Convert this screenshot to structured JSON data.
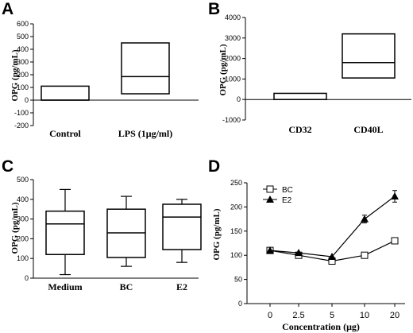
{
  "chart_data": [
    {
      "panel": "A",
      "type": "box",
      "ylabel": "OPG (pg/mL)",
      "ylim": [
        -200,
        600
      ],
      "yticks": [
        -200,
        -100,
        0,
        100,
        200,
        300,
        400,
        500,
        600
      ],
      "categories": [
        "Control",
        "LPS (1μg/ml)"
      ],
      "boxes": [
        {
          "label": "Control",
          "q1": 0,
          "median": 0,
          "q3": 110
        },
        {
          "label": "LPS (1μg/ml)",
          "q1": 50,
          "median": 185,
          "q3": 450
        }
      ]
    },
    {
      "panel": "B",
      "type": "box",
      "ylabel": "OPG (pg/mL)",
      "ylim": [
        -1000,
        4000
      ],
      "yticks": [
        -1000,
        0,
        1000,
        2000,
        3000,
        4000
      ],
      "categories": [
        "CD32",
        "CD40L"
      ],
      "boxes": [
        {
          "label": "CD32",
          "q1": 0,
          "median": 0,
          "q3": 300
        },
        {
          "label": "CD40L",
          "q1": 1050,
          "median": 1800,
          "q3": 3200
        }
      ]
    },
    {
      "panel": "C",
      "type": "box",
      "ylabel": "OPG (pg/mL)",
      "ylim": [
        0,
        500
      ],
      "yticks": [
        0,
        100,
        200,
        300,
        400,
        500
      ],
      "categories": [
        "Medium",
        "BC",
        "E2"
      ],
      "boxes": [
        {
          "label": "Medium",
          "min": 18,
          "q1": 120,
          "median": 275,
          "q3": 340,
          "max": 450
        },
        {
          "label": "BC",
          "min": 60,
          "q1": 105,
          "median": 230,
          "q3": 350,
          "max": 415
        },
        {
          "label": "E2",
          "min": 80,
          "q1": 145,
          "median": 310,
          "q3": 375,
          "max": 400
        }
      ]
    },
    {
      "panel": "D",
      "type": "line",
      "ylabel": "OPG (pg/mL)",
      "xlabel": "Concentration (μg)",
      "ylim": [
        0,
        250
      ],
      "yticks": [
        0,
        50,
        100,
        150,
        200,
        250
      ],
      "categories": [
        "0",
        "2.5",
        "5",
        "10",
        "20"
      ],
      "legend_position": "top-left",
      "series": [
        {
          "name": "BC",
          "marker": "open-square",
          "values": [
            110,
            100,
            88,
            100,
            130
          ],
          "errors": [
            0,
            0,
            0,
            0,
            0
          ]
        },
        {
          "name": "E2",
          "marker": "filled-triangle",
          "values": [
            110,
            105,
            97,
            175,
            222
          ],
          "errors": [
            0,
            0,
            0,
            8,
            12
          ]
        }
      ]
    }
  ],
  "panels": {
    "a": "A",
    "b": "B",
    "c": "C",
    "d": "D"
  }
}
